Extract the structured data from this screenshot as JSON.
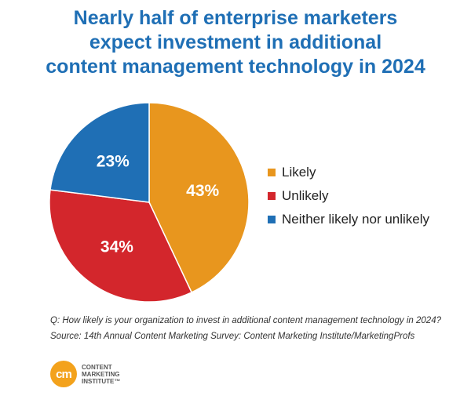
{
  "chart_data": {
    "type": "pie",
    "title_lines": [
      "Nearly half of enterprise marketers",
      "expect investment in additional",
      "content management technology in 2024"
    ],
    "slices": [
      {
        "label": "Likely",
        "value": 43,
        "display": "43%",
        "color": "#e8961e"
      },
      {
        "label": "Unlikely",
        "value": 34,
        "display": "34%",
        "color": "#d3262c"
      },
      {
        "label": "Neither likely nor unlikely",
        "value": 23,
        "display": "23%",
        "color": "#1f6fb5"
      }
    ],
    "legend_position": "right"
  },
  "footnote": {
    "question": "Q: How likely is your organization to invest in additional content management technology in 2024?",
    "source": "Source: 14th Annual Content Marketing Survey: Content Marketing Institute/MarketingProfs"
  },
  "logo": {
    "mark": "cm",
    "lines": [
      "CONTENT",
      "MARKETING",
      "INSTITUTE™"
    ]
  }
}
